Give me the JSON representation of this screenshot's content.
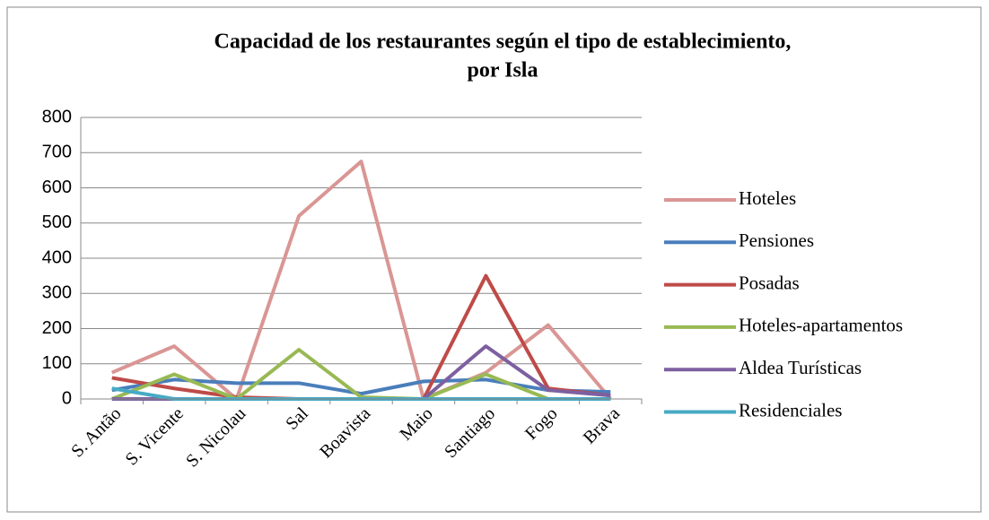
{
  "chart_data": {
    "type": "line",
    "title": [
      "Capacidad de los restaurantes según el tipo de establecimiento,",
      "por Isla"
    ],
    "categories": [
      "S. Antão",
      "S. Vicente",
      "S. Nicolau",
      "Sal",
      "Boavista",
      "Maio",
      "Santiago",
      "Fogo",
      "Brava"
    ],
    "series": [
      {
        "name": "Hoteles",
        "color": "#d99694",
        "values": [
          75,
          150,
          0,
          520,
          675,
          0,
          75,
          210,
          0
        ]
      },
      {
        "name": "Pensiones",
        "color": "#4a7ebb",
        "values": [
          25,
          55,
          45,
          45,
          15,
          50,
          55,
          25,
          20
        ]
      },
      {
        "name": "Posadas",
        "color": "#be4b48",
        "values": [
          60,
          30,
          5,
          0,
          0,
          0,
          350,
          30,
          10
        ]
      },
      {
        "name": "Hoteles-apartamentos",
        "color": "#98b954",
        "values": [
          0,
          70,
          0,
          140,
          5,
          0,
          70,
          0,
          0
        ]
      },
      {
        "name": "Aldea Turísticas",
        "color": "#7d60a0",
        "values": [
          0,
          0,
          0,
          0,
          0,
          0,
          150,
          25,
          10
        ]
      },
      {
        "name": "Residenciales",
        "color": "#46aac5",
        "values": [
          30,
          0,
          0,
          0,
          0,
          0,
          0,
          0,
          0
        ]
      }
    ],
    "ylim": [
      0,
      800
    ],
    "yticks": [
      0,
      100,
      200,
      300,
      400,
      500,
      600,
      700,
      800
    ],
    "grid": true,
    "legend": "right"
  }
}
